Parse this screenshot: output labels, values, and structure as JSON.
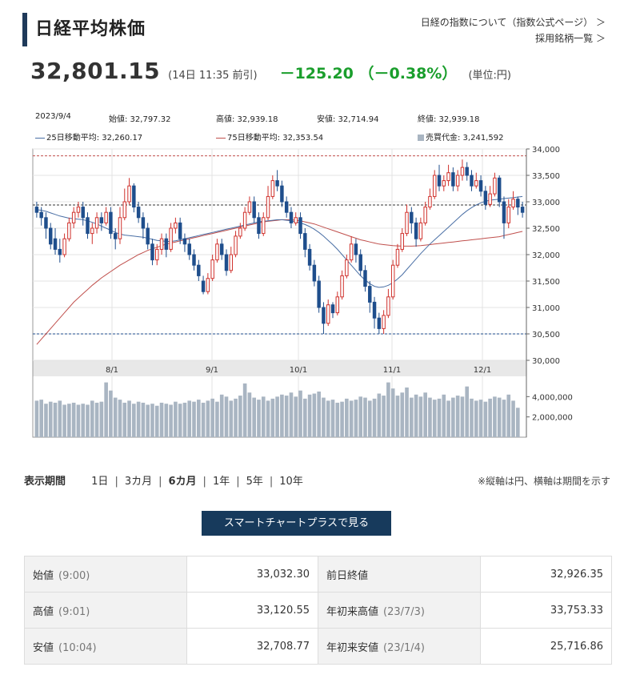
{
  "header": {
    "title": "日経平均株価",
    "link_about": "日経の指数について（指数公式ページ） ＞",
    "link_constituents": "採用銘柄一覧 ＞"
  },
  "quote": {
    "price": "32,801.15",
    "time": "(14日 11:35 前引)",
    "change": "－125.20 （－0.38%）",
    "unit": "(単位:円)"
  },
  "chart_info": {
    "date": "2023/9/4",
    "open": "始値: 32,797.32",
    "high": "高値: 32,939.18",
    "low": "安値: 32,714.94",
    "close": "終値: 32,939.18",
    "ma25": "25日移動平均: 32,260.17",
    "ma75": "75日移動平均: 32,353.54",
    "volume": "売買代金: 3,241,592"
  },
  "chart_data": {
    "type": "candlestick",
    "x_labels": [
      "8/1",
      "9/1",
      "10/1",
      "11/1",
      "12/1"
    ],
    "y_ticks": [
      "34,000",
      "33,500",
      "33,000",
      "32,500",
      "32,000",
      "31,500",
      "31,000",
      "30,500",
      "30,000"
    ],
    "volume_ticks": [
      "4,000,000",
      "2,000,000"
    ],
    "ylim": [
      30000,
      34000
    ],
    "ref_lines": {
      "high": 33870,
      "current": 32939,
      "low": 30500
    },
    "candles": [
      [
        32900,
        32800,
        33000,
        32700
      ],
      [
        32800,
        32700,
        32900,
        32550
      ],
      [
        32700,
        32500,
        32800,
        32300
      ],
      [
        32500,
        32200,
        32600,
        32100
      ],
      [
        32300,
        32100,
        32500,
        32000
      ],
      [
        32100,
        32000,
        32300,
        31850
      ],
      [
        32000,
        32300,
        32400,
        31950
      ],
      [
        32300,
        32600,
        32700,
        32250
      ],
      [
        32600,
        32800,
        32900,
        32500
      ],
      [
        32800,
        32900,
        33000,
        32700
      ],
      [
        32900,
        32700,
        33000,
        32550
      ],
      [
        32700,
        32400,
        32800,
        32300
      ],
      [
        32400,
        32500,
        32600,
        32200
      ],
      [
        32500,
        32700,
        32800,
        32400
      ],
      [
        32700,
        32600,
        32800,
        32450
      ],
      [
        32600,
        32800,
        32900,
        32550
      ],
      [
        32800,
        32400,
        32900,
        32300
      ],
      [
        32400,
        32300,
        32500,
        32100
      ],
      [
        32300,
        32700,
        32900,
        32200
      ],
      [
        32700,
        33000,
        33250,
        32650
      ],
      [
        33000,
        33300,
        33450,
        32950
      ],
      [
        33300,
        32900,
        33350,
        32800
      ],
      [
        32900,
        32700,
        33000,
        32600
      ],
      [
        32700,
        32500,
        32800,
        32300
      ],
      [
        32500,
        32200,
        32600,
        32100
      ],
      [
        32200,
        31900,
        32300,
        31800
      ],
      [
        31900,
        32100,
        32200,
        31800
      ],
      [
        32100,
        32300,
        32400,
        32000
      ],
      [
        32300,
        32100,
        32400,
        31950
      ],
      [
        32100,
        32500,
        32600,
        32050
      ],
      [
        32500,
        32600,
        32700,
        32400
      ],
      [
        32600,
        32300,
        32700,
        32200
      ],
      [
        32300,
        32200,
        32400,
        32050
      ],
      [
        32200,
        32000,
        32300,
        31900
      ],
      [
        32000,
        31800,
        32100,
        31700
      ],
      [
        31800,
        31600,
        31900,
        31500
      ],
      [
        31500,
        31300,
        31600,
        31250
      ],
      [
        31300,
        31550,
        31650,
        31250
      ],
      [
        31550,
        31900,
        32000,
        31500
      ],
      [
        31900,
        32200,
        32300,
        31850
      ],
      [
        32200,
        32000,
        32300,
        31900
      ],
      [
        32000,
        31700,
        32100,
        31600
      ],
      [
        31700,
        32000,
        32150,
        31650
      ],
      [
        32000,
        32350,
        32450,
        31950
      ],
      [
        32350,
        32500,
        32600,
        32300
      ],
      [
        32500,
        32800,
        32900,
        32450
      ],
      [
        32800,
        33000,
        33100,
        32750
      ],
      [
        33000,
        32700,
        33100,
        32600
      ],
      [
        32700,
        32400,
        32800,
        32300
      ],
      [
        32400,
        32700,
        32800,
        32350
      ],
      [
        32700,
        33100,
        33300,
        32650
      ],
      [
        33100,
        33400,
        33500,
        33050
      ],
      [
        33400,
        33300,
        33600,
        33200
      ],
      [
        33300,
        33000,
        33400,
        32900
      ],
      [
        33000,
        32800,
        33100,
        32700
      ],
      [
        32800,
        32600,
        32900,
        32500
      ],
      [
        32600,
        32700,
        32800,
        32550
      ],
      [
        32700,
        32400,
        32800,
        32300
      ],
      [
        32400,
        32100,
        32500,
        31950
      ],
      [
        32100,
        31800,
        32200,
        31700
      ],
      [
        31800,
        31500,
        31900,
        31400
      ],
      [
        31500,
        31000,
        31600,
        30900
      ],
      [
        31000,
        30700,
        31100,
        30500
      ],
      [
        30700,
        31050,
        31150,
        30650
      ],
      [
        31050,
        30900,
        31100,
        30800
      ],
      [
        30900,
        31200,
        31300,
        30850
      ],
      [
        31200,
        31600,
        31700,
        31150
      ],
      [
        31600,
        31900,
        32000,
        31550
      ],
      [
        31900,
        32200,
        32350,
        31850
      ],
      [
        32200,
        32000,
        32300,
        31850
      ],
      [
        32000,
        31700,
        32100,
        31600
      ],
      [
        31700,
        31400,
        31800,
        31300
      ],
      [
        31400,
        31100,
        31500,
        30900
      ],
      [
        31100,
        30800,
        31200,
        30600
      ],
      [
        30800,
        30600,
        30900,
        30500
      ],
      [
        30600,
        30850,
        30950,
        30500
      ],
      [
        30850,
        31200,
        31350,
        30800
      ],
      [
        31200,
        31800,
        31900,
        31150
      ],
      [
        31800,
        32100,
        32200,
        31750
      ],
      [
        32100,
        32400,
        32500,
        32050
      ],
      [
        32400,
        32800,
        32950,
        32350
      ],
      [
        32800,
        32600,
        32900,
        32400
      ],
      [
        32600,
        32300,
        32700,
        32150
      ],
      [
        32300,
        32600,
        32700,
        32250
      ],
      [
        32600,
        32900,
        33000,
        32550
      ],
      [
        32900,
        33100,
        33250,
        32850
      ],
      [
        33100,
        33500,
        33600,
        33050
      ],
      [
        33500,
        33300,
        33700,
        33200
      ],
      [
        33300,
        33400,
        33500,
        33200
      ],
      [
        33400,
        33550,
        33700,
        33300
      ],
      [
        33550,
        33300,
        33650,
        33200
      ],
      [
        33300,
        33500,
        33600,
        33200
      ],
      [
        33500,
        33650,
        33800,
        33400
      ],
      [
        33650,
        33500,
        33750,
        33400
      ],
      [
        33500,
        33300,
        33600,
        33200
      ],
      [
        33300,
        33400,
        33550,
        33250
      ],
      [
        33400,
        33200,
        33500,
        33100
      ],
      [
        33200,
        32950,
        33300,
        32850
      ],
      [
        32950,
        33150,
        33300,
        32900
      ],
      [
        33150,
        33450,
        33550,
        33100
      ],
      [
        33450,
        33000,
        33500,
        32900
      ],
      [
        33000,
        32600,
        33100,
        32300
      ],
      [
        32600,
        32900,
        33050,
        32500
      ],
      [
        32900,
        33050,
        33200,
        32850
      ],
      [
        33050,
        32900,
        33100,
        32750
      ],
      [
        32900,
        32800,
        33000,
        32700
      ]
    ],
    "ma25": [
      32850,
      32840,
      32820,
      32790,
      32760,
      32730,
      32710,
      32690,
      32680,
      32670,
      32660,
      32640,
      32610,
      32580,
      32540,
      32500,
      32460,
      32420,
      32390,
      32370,
      32360,
      32350,
      32340,
      32330,
      32310,
      32290,
      32270,
      32260,
      32250,
      32250,
      32260,
      32280,
      32300,
      32320,
      32340,
      32360,
      32380,
      32400,
      32420,
      32440,
      32460,
      32480,
      32500,
      32520,
      32540,
      32560,
      32580,
      32600,
      32620,
      32630,
      32640,
      32650,
      32660,
      32660,
      32650,
      32640,
      32620,
      32600,
      32570,
      32530,
      32480,
      32420,
      32350,
      32270,
      32190,
      32100,
      32000,
      31900,
      31800,
      31700,
      31600,
      31520,
      31450,
      31400,
      31380,
      31390,
      31420,
      31470,
      31540,
      31620,
      31720,
      31820,
      31920,
      32020,
      32110,
      32200,
      32280,
      32360,
      32440,
      32520,
      32600,
      32680,
      32760,
      32830,
      32890,
      32940,
      32980,
      33010,
      33030,
      33040,
      33050,
      33060,
      33070,
      33080,
      33090,
      33100
    ],
    "ma75": [
      30300,
      30400,
      30500,
      30600,
      30700,
      30800,
      30900,
      31000,
      31100,
      31180,
      31260,
      31340,
      31420,
      31490,
      31560,
      31620,
      31680,
      31740,
      31800,
      31850,
      31900,
      31950,
      32000,
      32040,
      32080,
      32110,
      32140,
      32170,
      32200,
      32220,
      32240,
      32260,
      32280,
      32300,
      32320,
      32340,
      32360,
      32380,
      32400,
      32420,
      32440,
      32460,
      32480,
      32500,
      32520,
      32540,
      32560,
      32580,
      32600,
      32620,
      32630,
      32640,
      32650,
      32660,
      32660,
      32660,
      32650,
      32640,
      32620,
      32600,
      32580,
      32550,
      32520,
      32490,
      32460,
      32430,
      32400,
      32370,
      32340,
      32310,
      32280,
      32260,
      32240,
      32220,
      32200,
      32190,
      32180,
      32170,
      32165,
      32160,
      32160,
      32160,
      32165,
      32170,
      32180,
      32190,
      32200,
      32210,
      32220,
      32230,
      32240,
      32250,
      32260,
      32270,
      32280,
      32290,
      32300,
      32310,
      32320,
      32330,
      32340,
      32360,
      32380,
      32400,
      32420,
      32440
    ],
    "volume": [
      3.6,
      3.7,
      3.3,
      3.5,
      3.4,
      3.6,
      3.2,
      3.3,
      3.4,
      3.2,
      3.3,
      3.2,
      3.6,
      3.4,
      3.5,
      5.4,
      4.6,
      3.9,
      3.7,
      3.4,
      3.6,
      3.3,
      3.5,
      3.4,
      3.2,
      3.3,
      3.1,
      3.4,
      3.3,
      3.2,
      3.5,
      3.3,
      3.4,
      3.6,
      3.5,
      3.7,
      3.4,
      3.6,
      3.8,
      3.5,
      4.2,
      4.0,
      3.6,
      3.8,
      4.1,
      5.3,
      4.4,
      3.9,
      3.7,
      4.0,
      3.6,
      3.8,
      4.0,
      4.2,
      4.1,
      4.4,
      4.0,
      4.6,
      3.8,
      4.2,
      4.3,
      4.5,
      3.9,
      3.6,
      3.7,
      3.4,
      3.5,
      3.8,
      3.6,
      3.7,
      4.0,
      3.9,
      3.6,
      3.8,
      4.3,
      4.1,
      5.4,
      4.8,
      4.1,
      4.4,
      4.9,
      3.9,
      4.2,
      4.0,
      4.4,
      3.9,
      3.7,
      3.8,
      4.2,
      3.6,
      3.9,
      4.1,
      4.0,
      5.0,
      3.8,
      3.6,
      3.7,
      3.5,
      3.8,
      4.0,
      3.9,
      3.7,
      4.2,
      3.6,
      2.9
    ]
  },
  "period": {
    "label": "表示期間",
    "options": [
      "1日",
      "3カ月",
      "6カ月",
      "1年",
      "5年",
      "10年"
    ],
    "active": "6カ月",
    "note": "※縦軸は円、横軸は期間を示す"
  },
  "smart_chart_button": "スマートチャートプラスで見る",
  "stats": {
    "rows": [
      {
        "k1": "始値",
        "s1": "(9:00)",
        "v1": "33,032.30",
        "k2": "前日終値",
        "s2": "",
        "v2": "32,926.35"
      },
      {
        "k1": "高値",
        "s1": "(9:01)",
        "v1": "33,120.55",
        "k2": "年初来高値",
        "s2": "(23/7/3)",
        "v2": "33,753.33"
      },
      {
        "k1": "安値",
        "s1": "(10:04)",
        "v1": "32,708.77",
        "k2": "年初来安値",
        "s2": "(23/1/4)",
        "v2": "25,716.86"
      }
    ]
  },
  "colors": {
    "up": "#d0322d",
    "down": "#1f4e8c",
    "ma25": "#4a6fa5",
    "ma75": "#c0504d",
    "volume": "#a9b5c2",
    "change": "#1a9e2c",
    "button": "#173a5c"
  }
}
